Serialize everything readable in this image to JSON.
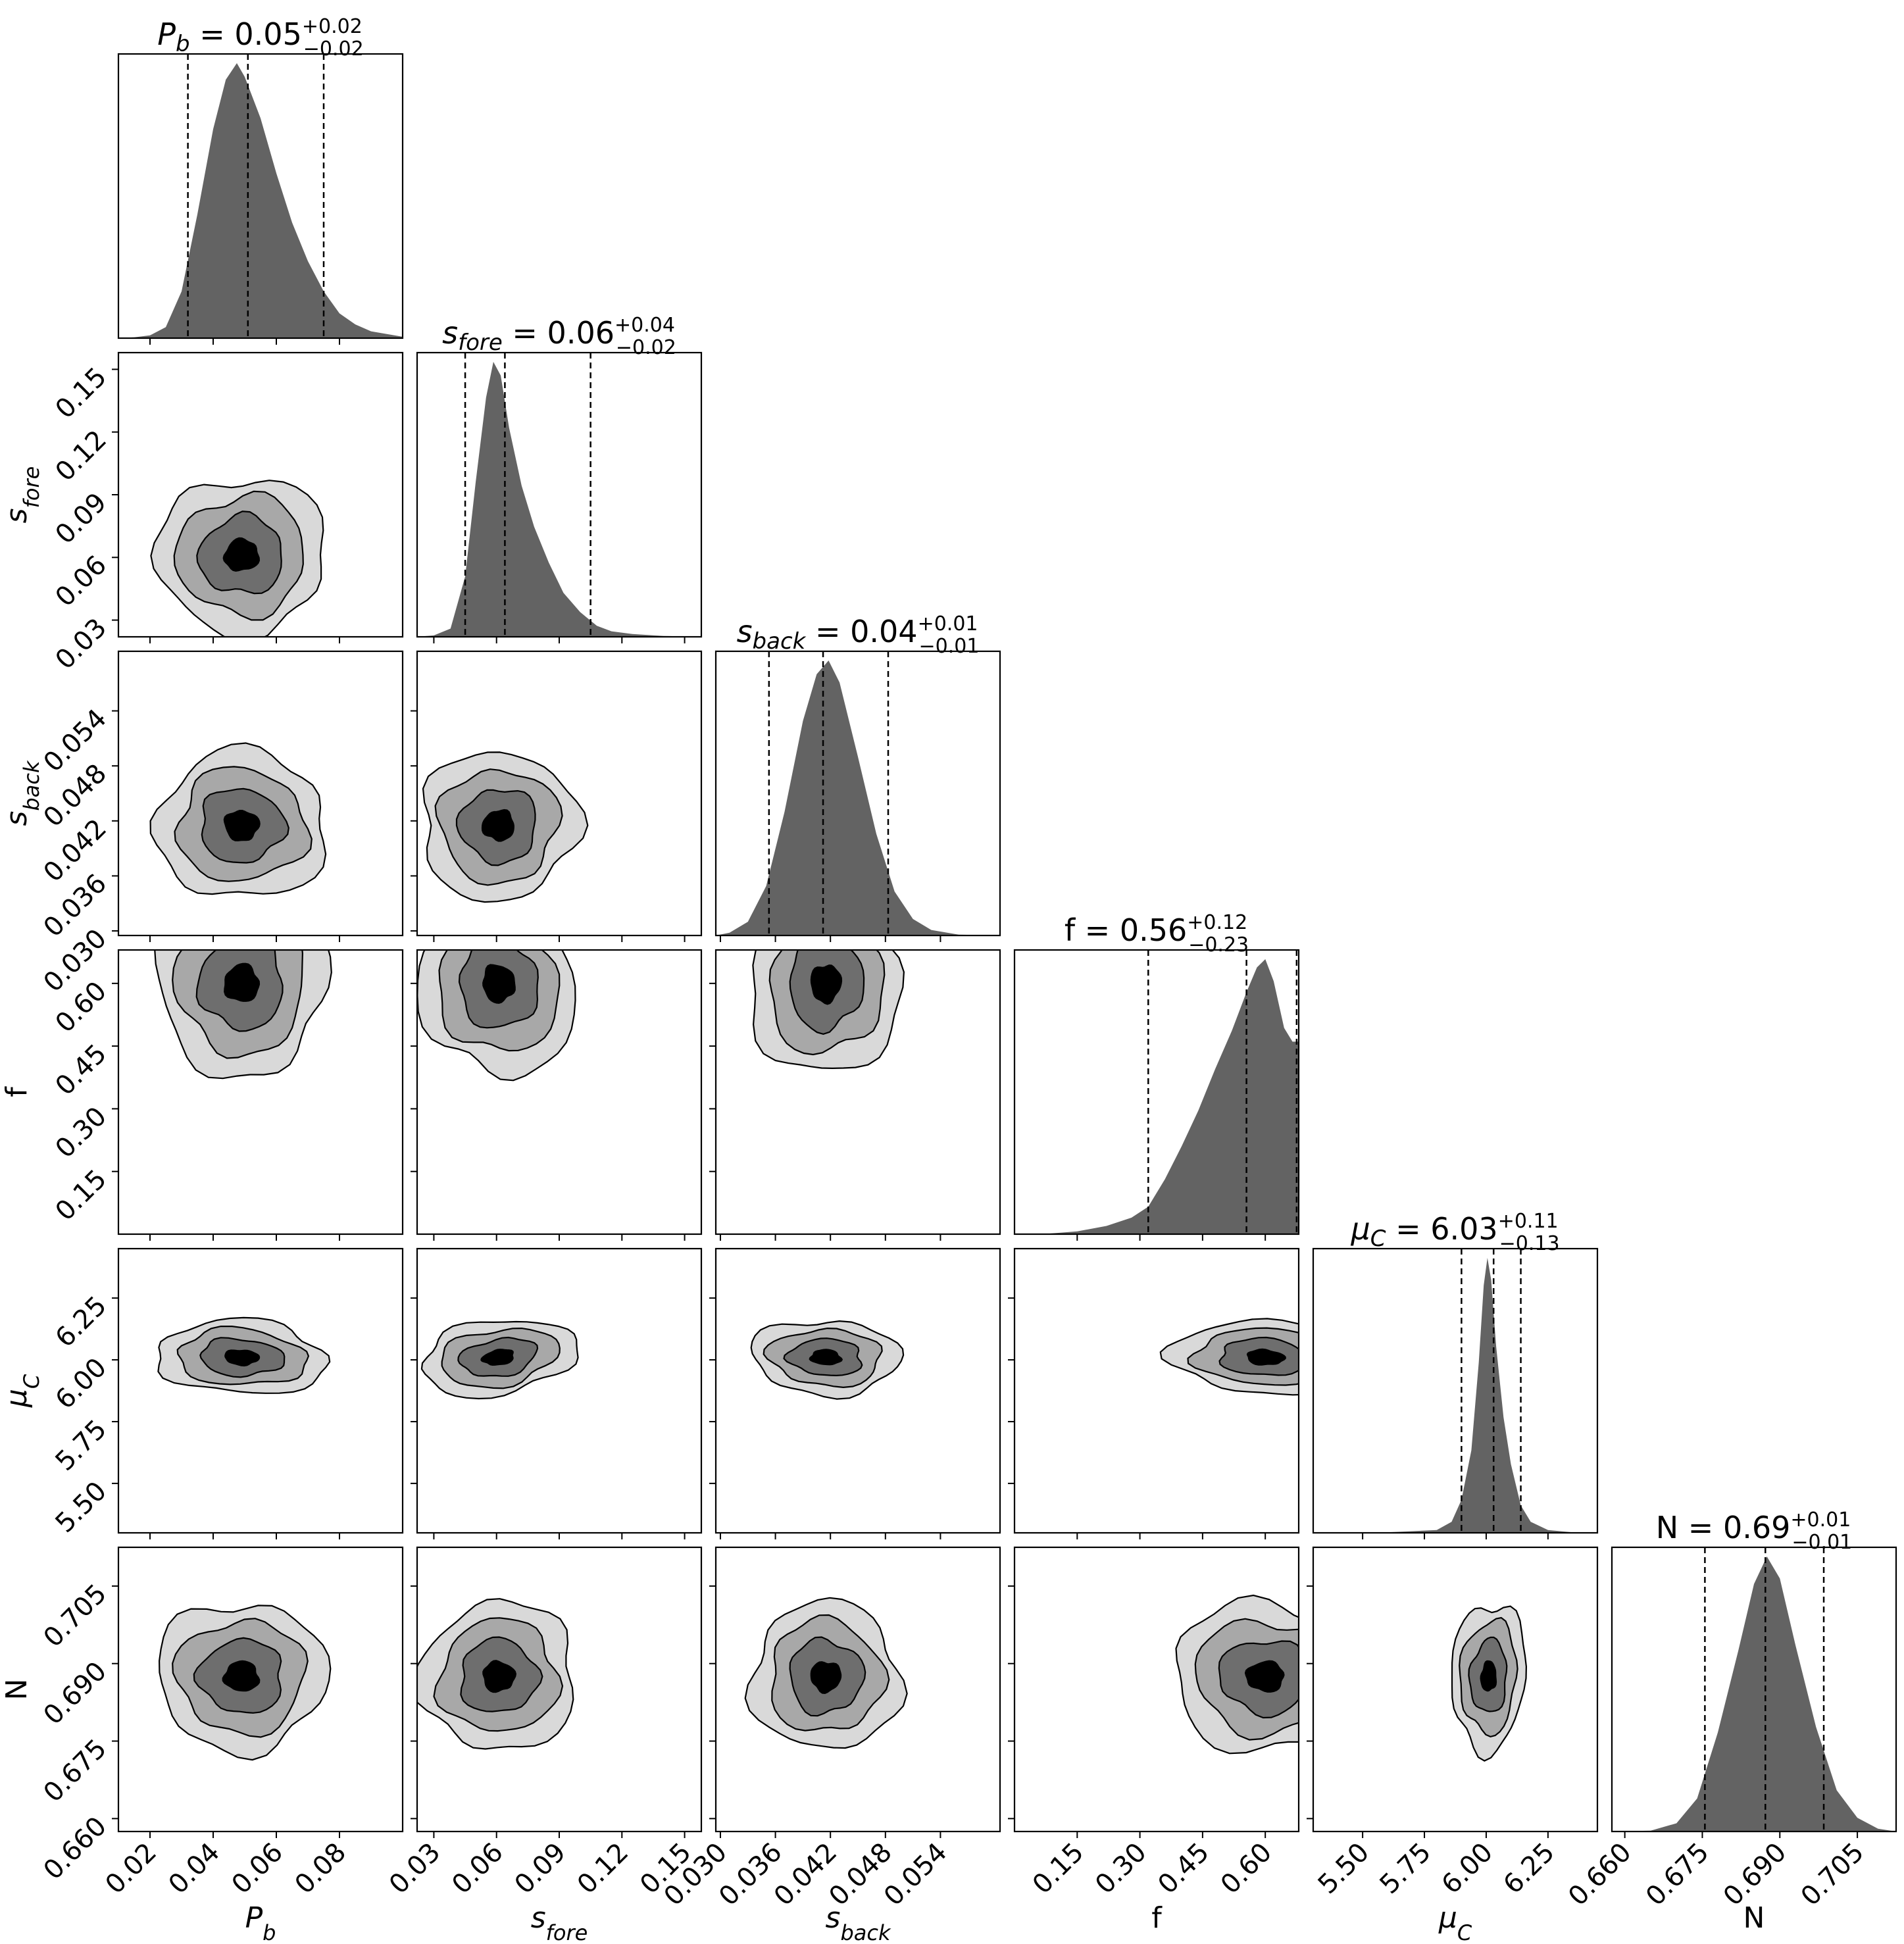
{
  "chart_data": {
    "type": "corner",
    "parameters": [
      {
        "key": "Pb",
        "label_main": "P",
        "label_sub": "b",
        "label_italic": true,
        "title_value": "0.05",
        "title_plus": "+0.02",
        "title_minus": "−0.02",
        "range": [
          0.01,
          0.1
        ],
        "ticks": [
          0.02,
          0.04,
          0.06,
          0.08
        ],
        "tick_labels": [
          "0.02",
          "0.04",
          "0.06",
          "0.08"
        ],
        "quantiles": [
          0.032,
          0.051,
          0.075
        ],
        "hist": [
          [
            0.01,
            0
          ],
          [
            0.015,
            0.003
          ],
          [
            0.02,
            0.01
          ],
          [
            0.025,
            0.04
          ],
          [
            0.03,
            0.17
          ],
          [
            0.035,
            0.45
          ],
          [
            0.04,
            0.76
          ],
          [
            0.044,
            0.94
          ],
          [
            0.0475,
            1.0
          ],
          [
            0.05,
            0.95
          ],
          [
            0.055,
            0.8
          ],
          [
            0.06,
            0.6
          ],
          [
            0.065,
            0.42
          ],
          [
            0.07,
            0.28
          ],
          [
            0.075,
            0.17
          ],
          [
            0.08,
            0.09
          ],
          [
            0.085,
            0.05
          ],
          [
            0.09,
            0.025
          ],
          [
            0.1,
            0.005
          ]
        ],
        "mode": 0.049
      },
      {
        "key": "sfore",
        "label_main": "s",
        "label_sub": "fore",
        "label_italic": true,
        "title_value": "0.06",
        "title_plus": "+0.04",
        "title_minus": "−0.02",
        "range": [
          0.022,
          0.158
        ],
        "ticks": [
          0.03,
          0.06,
          0.09,
          0.12,
          0.15
        ],
        "tick_labels": [
          "0.03",
          "0.06",
          "0.09",
          "0.12",
          "0.15"
        ],
        "quantiles": [
          0.045,
          0.064,
          0.105
        ],
        "hist": [
          [
            0.022,
            0
          ],
          [
            0.03,
            0.005
          ],
          [
            0.038,
            0.03
          ],
          [
            0.045,
            0.22
          ],
          [
            0.05,
            0.56
          ],
          [
            0.055,
            0.87
          ],
          [
            0.0585,
            1.0
          ],
          [
            0.062,
            0.95
          ],
          [
            0.066,
            0.76
          ],
          [
            0.072,
            0.55
          ],
          [
            0.078,
            0.4
          ],
          [
            0.085,
            0.27
          ],
          [
            0.092,
            0.16
          ],
          [
            0.1,
            0.09
          ],
          [
            0.108,
            0.04
          ],
          [
            0.115,
            0.02
          ],
          [
            0.125,
            0.01
          ],
          [
            0.14,
            0.003
          ],
          [
            0.158,
            0
          ]
        ],
        "mode": 0.061
      },
      {
        "key": "sback",
        "label_main": "s",
        "label_sub": "back",
        "label_italic": true,
        "title_value": "0.04",
        "title_plus": "+0.01",
        "title_minus": "−0.01",
        "range": [
          0.0295,
          0.0605
        ],
        "ticks": [
          0.03,
          0.036,
          0.042,
          0.048,
          0.054
        ],
        "tick_labels": [
          "0.030",
          "0.036",
          "0.042",
          "0.048",
          "0.054"
        ],
        "quantiles": [
          0.0353,
          0.0412,
          0.0483
        ],
        "hist": [
          [
            0.0295,
            0
          ],
          [
            0.031,
            0.01
          ],
          [
            0.033,
            0.05
          ],
          [
            0.035,
            0.18
          ],
          [
            0.037,
            0.45
          ],
          [
            0.039,
            0.78
          ],
          [
            0.0405,
            0.95
          ],
          [
            0.0418,
            1.0
          ],
          [
            0.043,
            0.92
          ],
          [
            0.045,
            0.65
          ],
          [
            0.047,
            0.37
          ],
          [
            0.049,
            0.16
          ],
          [
            0.051,
            0.06
          ],
          [
            0.053,
            0.02
          ],
          [
            0.056,
            0.003
          ],
          [
            0.0605,
            0
          ]
        ],
        "mode": 0.0415
      },
      {
        "key": "f",
        "label_main": "f",
        "label_sub": "",
        "label_italic": false,
        "title_value": "0.56",
        "title_plus": "+0.12",
        "title_minus": "−0.23",
        "range": [
          0.0,
          0.68
        ],
        "ticks": [
          0.15,
          0.3,
          0.45,
          0.6
        ],
        "tick_labels": [
          "0.15",
          "0.30",
          "0.45",
          "0.60"
        ],
        "quantiles": [
          0.32,
          0.555,
          0.675
        ],
        "hist": [
          [
            0.0,
            0
          ],
          [
            0.08,
            0.002
          ],
          [
            0.15,
            0.01
          ],
          [
            0.22,
            0.03
          ],
          [
            0.28,
            0.06
          ],
          [
            0.32,
            0.1
          ],
          [
            0.36,
            0.2
          ],
          [
            0.4,
            0.32
          ],
          [
            0.44,
            0.45
          ],
          [
            0.48,
            0.6
          ],
          [
            0.52,
            0.74
          ],
          [
            0.555,
            0.88
          ],
          [
            0.58,
            0.97
          ],
          [
            0.6,
            1.0
          ],
          [
            0.62,
            0.92
          ],
          [
            0.645,
            0.75
          ],
          [
            0.665,
            0.7
          ],
          [
            0.68,
            0.7
          ]
        ],
        "mode": 0.6
      },
      {
        "key": "muC",
        "label_main": "μ",
        "label_sub": "C",
        "label_italic": true,
        "title_value": "6.03",
        "title_plus": "+0.11",
        "title_minus": "−0.13",
        "range": [
          5.3,
          6.45
        ],
        "ticks": [
          5.5,
          5.75,
          6.0,
          6.25
        ],
        "tick_labels": [
          "5.50",
          "5.75",
          "6.00",
          "6.25"
        ],
        "quantiles": [
          5.9,
          6.03,
          6.14
        ],
        "hist": [
          [
            5.3,
            0
          ],
          [
            5.6,
            0.002
          ],
          [
            5.8,
            0.01
          ],
          [
            5.86,
            0.04
          ],
          [
            5.9,
            0.12
          ],
          [
            5.94,
            0.3
          ],
          [
            5.97,
            0.62
          ],
          [
            5.99,
            0.9
          ],
          [
            6.005,
            1.0
          ],
          [
            6.02,
            0.92
          ],
          [
            6.04,
            0.68
          ],
          [
            6.07,
            0.42
          ],
          [
            6.1,
            0.25
          ],
          [
            6.14,
            0.1
          ],
          [
            6.18,
            0.04
          ],
          [
            6.25,
            0.01
          ],
          [
            6.35,
            0.002
          ],
          [
            6.45,
            0
          ]
        ],
        "mode": 6.01
      },
      {
        "key": "N",
        "label_main": "N",
        "label_sub": "",
        "label_italic": false,
        "title_value": "0.69",
        "title_plus": "+0.01",
        "title_minus": "−0.01",
        "range": [
          0.6575,
          0.7125
        ],
        "ticks": [
          0.66,
          0.675,
          0.69,
          0.705
        ],
        "tick_labels": [
          "0.660",
          "0.675",
          "0.690",
          "0.705"
        ],
        "quantiles": [
          0.6755,
          0.6872,
          0.6985
        ],
        "hist": [
          [
            0.6575,
            0
          ],
          [
            0.665,
            0.003
          ],
          [
            0.67,
            0.03
          ],
          [
            0.674,
            0.12
          ],
          [
            0.678,
            0.36
          ],
          [
            0.682,
            0.66
          ],
          [
            0.685,
            0.9
          ],
          [
            0.6875,
            1.0
          ],
          [
            0.69,
            0.92
          ],
          [
            0.693,
            0.68
          ],
          [
            0.697,
            0.38
          ],
          [
            0.701,
            0.15
          ],
          [
            0.705,
            0.05
          ],
          [
            0.709,
            0.01
          ],
          [
            0.7125,
            0
          ]
        ],
        "mode": 0.6875
      }
    ],
    "contour_levels": [
      "#d9d9d9",
      "#a8a8a8",
      "#6e6e6e",
      "#000000"
    ],
    "line_color": "#000000",
    "hist_color": "#636363"
  }
}
